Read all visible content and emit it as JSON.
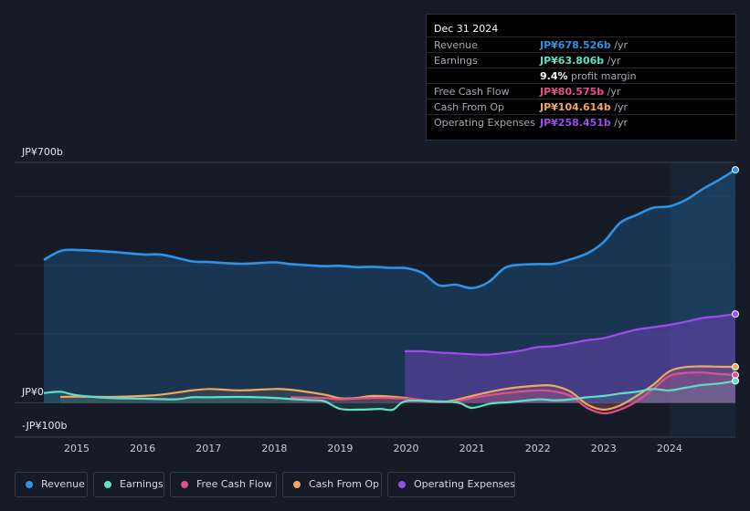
{
  "tooltip": {
    "date": "Dec 31 2024",
    "rows": [
      {
        "label": "Revenue",
        "value": "JP¥678.526b",
        "unit": "/yr",
        "color": "#2e93e6"
      },
      {
        "label": "Earnings",
        "value": "JP¥63.806b",
        "unit": "/yr",
        "color": "#5ee0c8"
      },
      {
        "label": "",
        "value": "9.4%",
        "unit": "profit margin",
        "color": "#ffffff"
      },
      {
        "label": "Free Cash Flow",
        "value": "JP¥80.575b",
        "unit": "/yr",
        "color": "#e0508c"
      },
      {
        "label": "Cash From Op",
        "value": "JP¥104.614b",
        "unit": "/yr",
        "color": "#f0a860"
      },
      {
        "label": "Operating Expenses",
        "value": "JP¥258.451b",
        "unit": "/yr",
        "color": "#a04af0"
      }
    ]
  },
  "chart_data": {
    "type": "area",
    "ylabels": {
      "top": "JP¥700b",
      "zero": "JP¥0",
      "bottom": "-JP¥100b"
    },
    "ylim": [
      -100,
      700
    ],
    "xlim": [
      2014.5,
      2025.0
    ],
    "x_ticks": [
      "2015",
      "2016",
      "2017",
      "2018",
      "2019",
      "2020",
      "2021",
      "2022",
      "2023",
      "2024"
    ],
    "series": [
      {
        "name": "Revenue",
        "color": "#2e93e6",
        "points": [
          [
            2014.5,
            416
          ],
          [
            2014.75,
            442
          ],
          [
            2015.0,
            445
          ],
          [
            2015.5,
            440
          ],
          [
            2016.0,
            432
          ],
          [
            2016.3,
            431
          ],
          [
            2016.75,
            412
          ],
          [
            2017.0,
            410
          ],
          [
            2017.5,
            405
          ],
          [
            2018.0,
            409
          ],
          [
            2018.25,
            404
          ],
          [
            2018.75,
            398
          ],
          [
            2019.0,
            399
          ],
          [
            2019.25,
            395
          ],
          [
            2019.5,
            396
          ],
          [
            2019.75,
            393
          ],
          [
            2020.0,
            392
          ],
          [
            2020.25,
            378
          ],
          [
            2020.5,
            342
          ],
          [
            2020.75,
            344
          ],
          [
            2021.0,
            334
          ],
          [
            2021.25,
            351
          ],
          [
            2021.5,
            393
          ],
          [
            2021.75,
            402
          ],
          [
            2022.0,
            404
          ],
          [
            2022.25,
            405
          ],
          [
            2022.5,
            418
          ],
          [
            2022.75,
            435
          ],
          [
            2023.0,
            468
          ],
          [
            2023.25,
            524
          ],
          [
            2023.5,
            547
          ],
          [
            2023.75,
            568
          ],
          [
            2024.0,
            572
          ],
          [
            2024.25,
            591
          ],
          [
            2024.5,
            622
          ],
          [
            2024.75,
            649
          ],
          [
            2025.0,
            678.5
          ]
        ]
      },
      {
        "name": "Earnings",
        "color": "#5ee0c8",
        "points": [
          [
            2014.5,
            28
          ],
          [
            2014.75,
            32
          ],
          [
            2015.0,
            22
          ],
          [
            2015.5,
            14
          ],
          [
            2016.0,
            12
          ],
          [
            2016.5,
            10
          ],
          [
            2016.75,
            16
          ],
          [
            2017.0,
            16
          ],
          [
            2017.5,
            17
          ],
          [
            2018.0,
            14
          ],
          [
            2018.5,
            8
          ],
          [
            2018.75,
            5
          ],
          [
            2019.0,
            -18
          ],
          [
            2019.3,
            -20
          ],
          [
            2019.6,
            -18
          ],
          [
            2019.8,
            -20
          ],
          [
            2020.0,
            5
          ],
          [
            2020.5,
            4
          ],
          [
            2020.8,
            0
          ],
          [
            2021.0,
            -15
          ],
          [
            2021.3,
            -2
          ],
          [
            2021.6,
            2
          ],
          [
            2022.0,
            10
          ],
          [
            2022.25,
            7
          ],
          [
            2022.5,
            10
          ],
          [
            2022.75,
            16
          ],
          [
            2023.0,
            20
          ],
          [
            2023.25,
            27
          ],
          [
            2023.5,
            32
          ],
          [
            2023.75,
            40
          ],
          [
            2024.0,
            36
          ],
          [
            2024.25,
            44
          ],
          [
            2024.5,
            52
          ],
          [
            2024.75,
            56
          ],
          [
            2025.0,
            63.8
          ]
        ]
      },
      {
        "name": "Free Cash Flow",
        "color": "#e0508c",
        "points": [
          [
            2018.25,
            16
          ],
          [
            2018.75,
            14
          ],
          [
            2019.0,
            10
          ],
          [
            2019.5,
            14
          ],
          [
            2020.0,
            12
          ],
          [
            2020.25,
            8
          ],
          [
            2020.5,
            2
          ],
          [
            2020.75,
            4
          ],
          [
            2021.0,
            14
          ],
          [
            2021.5,
            28
          ],
          [
            2022.0,
            36
          ],
          [
            2022.25,
            33
          ],
          [
            2022.5,
            20
          ],
          [
            2022.75,
            -15
          ],
          [
            2023.0,
            -31
          ],
          [
            2023.25,
            -20
          ],
          [
            2023.5,
            4
          ],
          [
            2023.75,
            40
          ],
          [
            2024.0,
            78
          ],
          [
            2024.25,
            87
          ],
          [
            2024.5,
            88
          ],
          [
            2024.75,
            84
          ],
          [
            2025.0,
            80.6
          ]
        ]
      },
      {
        "name": "Cash From Op",
        "color": "#f0a860",
        "points": [
          [
            2014.75,
            17
          ],
          [
            2015.0,
            18
          ],
          [
            2015.5,
            17
          ],
          [
            2016.0,
            20
          ],
          [
            2016.3,
            24
          ],
          [
            2016.75,
            36
          ],
          [
            2017.0,
            40
          ],
          [
            2017.25,
            38
          ],
          [
            2017.5,
            36
          ],
          [
            2018.0,
            40
          ],
          [
            2018.25,
            38
          ],
          [
            2018.75,
            24
          ],
          [
            2019.0,
            13
          ],
          [
            2019.25,
            14
          ],
          [
            2019.5,
            20
          ],
          [
            2020.0,
            14
          ],
          [
            2020.25,
            6
          ],
          [
            2020.5,
            2
          ],
          [
            2020.75,
            8
          ],
          [
            2021.0,
            20
          ],
          [
            2021.5,
            40
          ],
          [
            2022.0,
            50
          ],
          [
            2022.25,
            49
          ],
          [
            2022.5,
            32
          ],
          [
            2022.75,
            -5
          ],
          [
            2023.0,
            -20
          ],
          [
            2023.25,
            -8
          ],
          [
            2023.5,
            20
          ],
          [
            2023.75,
            52
          ],
          [
            2024.0,
            92
          ],
          [
            2024.25,
            104
          ],
          [
            2024.5,
            106
          ],
          [
            2024.75,
            105
          ],
          [
            2025.0,
            104.6
          ]
        ]
      },
      {
        "name": "Operating Expenses",
        "color": "#a04af0",
        "points": [
          [
            2019.98,
            150
          ],
          [
            2020.25,
            150
          ],
          [
            2020.5,
            146
          ],
          [
            2020.75,
            144
          ],
          [
            2021.0,
            141
          ],
          [
            2021.25,
            140
          ],
          [
            2021.5,
            145
          ],
          [
            2021.75,
            152
          ],
          [
            2022.0,
            162
          ],
          [
            2022.25,
            165
          ],
          [
            2022.5,
            173
          ],
          [
            2022.75,
            182
          ],
          [
            2023.0,
            188
          ],
          [
            2023.25,
            201
          ],
          [
            2023.5,
            213
          ],
          [
            2023.75,
            220
          ],
          [
            2024.0,
            227
          ],
          [
            2024.25,
            236
          ],
          [
            2024.5,
            247
          ],
          [
            2024.75,
            252
          ],
          [
            2025.0,
            258.5
          ]
        ]
      }
    ]
  },
  "legend": [
    {
      "label": "Revenue",
      "color": "#2e93e6"
    },
    {
      "label": "Earnings",
      "color": "#5ee0c8"
    },
    {
      "label": "Free Cash Flow",
      "color": "#e0508c"
    },
    {
      "label": "Cash From Op",
      "color": "#f0a860"
    },
    {
      "label": "Operating Expenses",
      "color": "#a04af0"
    }
  ]
}
